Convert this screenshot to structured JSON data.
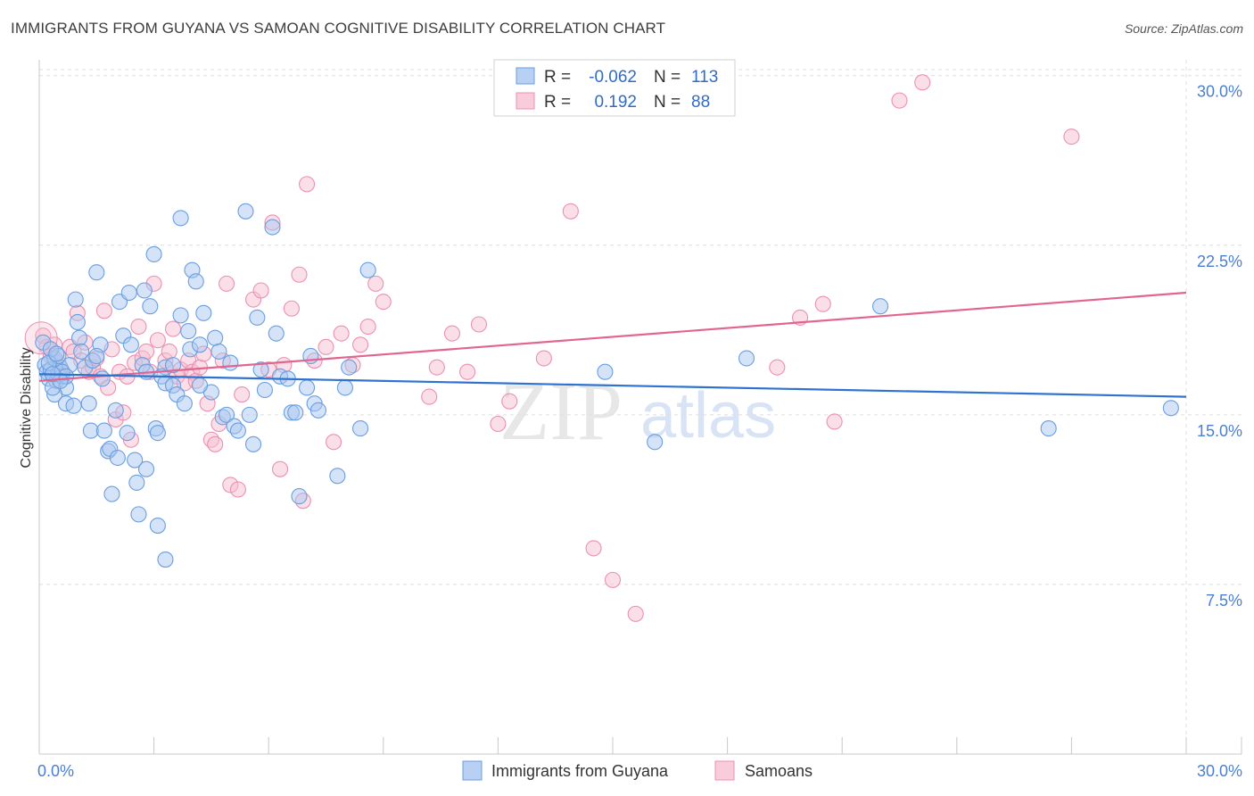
{
  "title": "IMMIGRANTS FROM GUYANA VS SAMOAN COGNITIVE DISABILITY CORRELATION CHART",
  "source": "Source: ZipAtlas.com",
  "watermark": {
    "zip": "ZIP",
    "atlas": "atlas"
  },
  "colors": {
    "blue_fill": "#a9c8f0",
    "blue_stroke": "#6a9ee0",
    "blue_line": "#2f72d0",
    "pink_fill": "#f7c0d2",
    "pink_stroke": "#ec8fb0",
    "pink_line": "#e06690",
    "tick_label": "#4a7fd0",
    "grid": "#dedede"
  },
  "legend": {
    "row1": {
      "r_label": "R =",
      "r_value": "-0.062",
      "n_label": "N =",
      "n_value": "113"
    },
    "row2": {
      "r_label": "R =",
      "r_value": "0.192",
      "n_label": "N =",
      "n_value": "88"
    }
  },
  "bottom_legend": {
    "series1": "Immigrants from Guyana",
    "series2": "Samoans"
  },
  "chart_data": {
    "type": "scatter",
    "xlabel": "",
    "ylabel": "Cognitive Disability",
    "xlim": [
      0,
      30
    ],
    "ylim": [
      0,
      30.7
    ],
    "x_tick_labels": [
      "0.0%",
      "30.0%"
    ],
    "y_ticks": [
      7.5,
      15.0,
      22.5,
      30.0
    ],
    "y_tick_labels": [
      "7.5%",
      "15.0%",
      "22.5%",
      "30.0%"
    ],
    "grid": true,
    "series": [
      {
        "name": "Immigrants from Guyana",
        "r": -0.062,
        "n": 113,
        "trend": {
          "x0": 0,
          "y0": 16.8,
          "x1": 30,
          "y1": 15.8
        },
        "points": [
          [
            0.1,
            18.2
          ],
          [
            0.15,
            17.2
          ],
          [
            0.2,
            16.9
          ],
          [
            0.25,
            16.6
          ],
          [
            0.3,
            17.0
          ],
          [
            0.35,
            16.8
          ],
          [
            0.4,
            17.5
          ],
          [
            0.45,
            16.5
          ],
          [
            0.5,
            16.8
          ],
          [
            0.55,
            17.1
          ],
          [
            0.6,
            16.7
          ],
          [
            0.7,
            16.2
          ],
          [
            0.4,
            15.9
          ],
          [
            0.5,
            17.6
          ],
          [
            0.7,
            15.5
          ],
          [
            0.8,
            17.2
          ],
          [
            0.9,
            15.4
          ],
          [
            1.0,
            19.1
          ],
          [
            1.05,
            18.4
          ],
          [
            0.95,
            20.1
          ],
          [
            1.1,
            17.8
          ],
          [
            1.2,
            17.1
          ],
          [
            1.3,
            15.5
          ],
          [
            1.35,
            14.3
          ],
          [
            1.4,
            17.4
          ],
          [
            1.5,
            21.3
          ],
          [
            1.6,
            18.1
          ],
          [
            1.65,
            16.6
          ],
          [
            1.7,
            14.3
          ],
          [
            1.8,
            13.4
          ],
          [
            1.85,
            13.5
          ],
          [
            1.9,
            11.5
          ],
          [
            2.0,
            15.2
          ],
          [
            2.05,
            13.1
          ],
          [
            2.1,
            20.0
          ],
          [
            2.2,
            18.5
          ],
          [
            2.3,
            14.2
          ],
          [
            2.35,
            20.4
          ],
          [
            2.4,
            18.1
          ],
          [
            2.5,
            13.0
          ],
          [
            2.55,
            12.0
          ],
          [
            2.6,
            10.6
          ],
          [
            2.7,
            17.2
          ],
          [
            2.75,
            20.5
          ],
          [
            2.8,
            12.6
          ],
          [
            2.9,
            19.8
          ],
          [
            3.0,
            22.1
          ],
          [
            3.05,
            14.4
          ],
          [
            3.1,
            14.2
          ],
          [
            3.1,
            10.1
          ],
          [
            3.3,
            17.1
          ],
          [
            3.2,
            16.7
          ],
          [
            3.3,
            16.4
          ],
          [
            3.3,
            8.6
          ],
          [
            3.5,
            17.2
          ],
          [
            3.5,
            16.3
          ],
          [
            3.6,
            15.9
          ],
          [
            3.7,
            23.7
          ],
          [
            3.7,
            19.4
          ],
          [
            3.8,
            15.5
          ],
          [
            3.9,
            18.7
          ],
          [
            3.95,
            17.9
          ],
          [
            4.0,
            21.4
          ],
          [
            4.1,
            20.9
          ],
          [
            4.2,
            18.1
          ],
          [
            4.3,
            19.5
          ],
          [
            4.5,
            16.0
          ],
          [
            4.6,
            18.4
          ],
          [
            4.7,
            17.8
          ],
          [
            4.8,
            14.9
          ],
          [
            4.9,
            15.0
          ],
          [
            5.0,
            17.3
          ],
          [
            5.1,
            14.5
          ],
          [
            5.2,
            14.3
          ],
          [
            5.4,
            24.0
          ],
          [
            5.5,
            15.0
          ],
          [
            5.6,
            13.7
          ],
          [
            5.7,
            19.3
          ],
          [
            5.9,
            16.1
          ],
          [
            6.2,
            18.6
          ],
          [
            6.1,
            23.3
          ],
          [
            6.3,
            16.7
          ],
          [
            6.5,
            16.6
          ],
          [
            6.6,
            15.1
          ],
          [
            6.7,
            15.1
          ],
          [
            6.8,
            11.4
          ],
          [
            7.0,
            16.2
          ],
          [
            7.1,
            17.6
          ],
          [
            7.2,
            15.5
          ],
          [
            7.3,
            15.2
          ],
          [
            7.8,
            12.3
          ],
          [
            8.0,
            16.2
          ],
          [
            8.1,
            17.1
          ],
          [
            8.4,
            14.4
          ],
          [
            8.6,
            21.4
          ],
          [
            14.8,
            16.9
          ],
          [
            16.1,
            13.8
          ],
          [
            18.5,
            17.5
          ],
          [
            22.0,
            19.8
          ],
          [
            26.4,
            14.4
          ],
          [
            29.6,
            15.3
          ],
          [
            0.3,
            17.9
          ],
          [
            0.25,
            17.3
          ],
          [
            0.6,
            16.9
          ],
          [
            0.35,
            16.2
          ],
          [
            0.45,
            17.7
          ],
          [
            0.7,
            16.7
          ],
          [
            0.55,
            16.5
          ],
          [
            0.35,
            16.8
          ],
          [
            1.5,
            17.6
          ],
          [
            2.8,
            16.9
          ],
          [
            4.2,
            16.3
          ],
          [
            5.8,
            17.0
          ]
        ]
      },
      {
        "name": "Samoans",
        "r": 0.192,
        "n": 88,
        "trend": {
          "x0": 0,
          "y0": 16.5,
          "x1": 30,
          "y1": 20.4
        },
        "points": [
          [
            0.1,
            18.5
          ],
          [
            0.2,
            18.0
          ],
          [
            0.3,
            17.6
          ],
          [
            0.4,
            18.1
          ],
          [
            0.5,
            17.3
          ],
          [
            0.6,
            16.9
          ],
          [
            0.8,
            18.0
          ],
          [
            0.9,
            17.8
          ],
          [
            1.0,
            19.5
          ],
          [
            1.1,
            17.4
          ],
          [
            1.2,
            18.2
          ],
          [
            1.3,
            16.9
          ],
          [
            1.4,
            17.1
          ],
          [
            1.5,
            17.5
          ],
          [
            1.6,
            16.7
          ],
          [
            1.7,
            19.6
          ],
          [
            1.8,
            16.2
          ],
          [
            1.9,
            17.9
          ],
          [
            2.0,
            14.8
          ],
          [
            2.1,
            16.9
          ],
          [
            2.2,
            15.1
          ],
          [
            2.3,
            16.7
          ],
          [
            2.4,
            13.9
          ],
          [
            2.5,
            17.3
          ],
          [
            2.6,
            18.9
          ],
          [
            2.7,
            17.5
          ],
          [
            2.8,
            17.8
          ],
          [
            2.9,
            16.9
          ],
          [
            3.0,
            20.8
          ],
          [
            3.1,
            18.3
          ],
          [
            3.3,
            17.4
          ],
          [
            3.4,
            17.8
          ],
          [
            3.5,
            18.8
          ],
          [
            3.6,
            16.7
          ],
          [
            3.7,
            17.0
          ],
          [
            3.8,
            16.4
          ],
          [
            3.9,
            17.4
          ],
          [
            4.0,
            16.9
          ],
          [
            4.1,
            16.5
          ],
          [
            4.2,
            17.1
          ],
          [
            4.3,
            17.7
          ],
          [
            4.4,
            15.5
          ],
          [
            4.5,
            13.9
          ],
          [
            4.6,
            13.7
          ],
          [
            4.7,
            14.6
          ],
          [
            4.8,
            17.4
          ],
          [
            4.9,
            20.8
          ],
          [
            5.0,
            11.9
          ],
          [
            5.2,
            11.7
          ],
          [
            5.3,
            15.9
          ],
          [
            5.6,
            20.1
          ],
          [
            5.8,
            20.5
          ],
          [
            6.0,
            17.0
          ],
          [
            6.1,
            23.5
          ],
          [
            6.3,
            12.6
          ],
          [
            6.4,
            17.2
          ],
          [
            6.6,
            19.7
          ],
          [
            6.8,
            21.2
          ],
          [
            6.9,
            11.2
          ],
          [
            7.0,
            25.2
          ],
          [
            7.2,
            17.4
          ],
          [
            7.5,
            18.0
          ],
          [
            7.7,
            13.8
          ],
          [
            7.9,
            18.6
          ],
          [
            8.2,
            17.2
          ],
          [
            8.4,
            18.1
          ],
          [
            8.6,
            18.9
          ],
          [
            8.8,
            20.8
          ],
          [
            9.0,
            20.0
          ],
          [
            10.2,
            15.8
          ],
          [
            10.4,
            17.1
          ],
          [
            10.8,
            18.6
          ],
          [
            11.2,
            16.9
          ],
          [
            11.5,
            19.0
          ],
          [
            12.0,
            14.6
          ],
          [
            12.3,
            15.6
          ],
          [
            13.2,
            17.5
          ],
          [
            13.9,
            24.0
          ],
          [
            14.5,
            9.1
          ],
          [
            15.0,
            7.7
          ],
          [
            15.6,
            6.2
          ],
          [
            19.3,
            17.1
          ],
          [
            19.9,
            19.3
          ],
          [
            20.5,
            19.9
          ],
          [
            20.8,
            14.7
          ],
          [
            22.5,
            28.9
          ],
          [
            23.1,
            29.7
          ],
          [
            27.0,
            27.3
          ]
        ]
      }
    ]
  }
}
